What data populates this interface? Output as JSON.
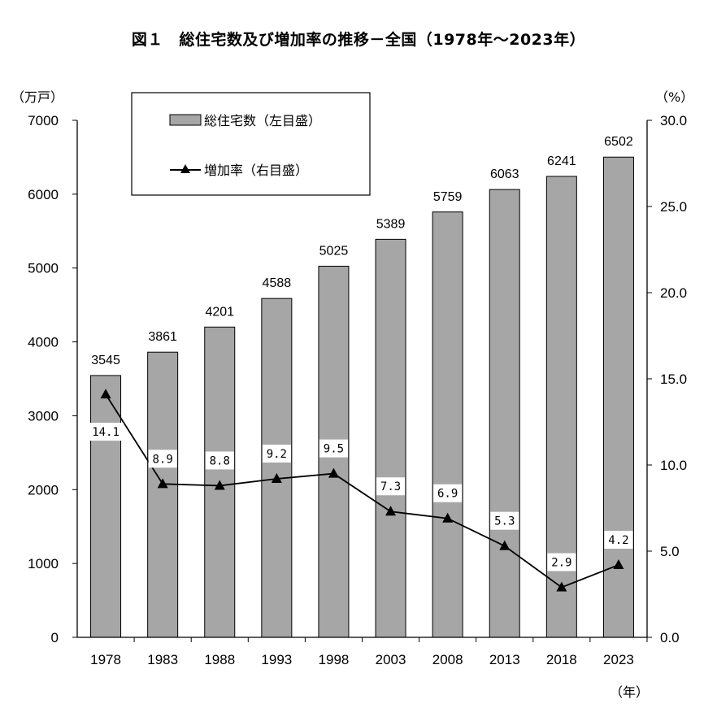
{
  "title": "図１　総住宅数及び増加率の推移－全国（1978年～2023年）",
  "left_unit": "（万戸）",
  "right_unit": "（%）",
  "x_unit": "（年）",
  "colors": {
    "bar_fill": "#a6a6a6",
    "bar_stroke": "#000000",
    "line": "#000000"
  },
  "chart_data": {
    "type": "bar",
    "categories": [
      "1978",
      "1983",
      "1988",
      "1993",
      "1998",
      "2003",
      "2008",
      "2013",
      "2018",
      "2023"
    ],
    "series": [
      {
        "name": "総住宅数（左目盛）",
        "type": "bar",
        "axis": "left",
        "values": [
          3545,
          3861,
          4201,
          4588,
          5025,
          5389,
          5759,
          6063,
          6241,
          6502
        ],
        "labels": [
          "3545",
          "3861",
          "4201",
          "4588",
          "5025",
          "5389",
          "5759",
          "6063",
          "6241",
          "6502"
        ]
      },
      {
        "name": "増加率（右目盛）",
        "type": "line",
        "axis": "right",
        "values": [
          14.1,
          8.9,
          8.8,
          9.2,
          9.5,
          7.3,
          6.9,
          5.3,
          2.9,
          4.2
        ],
        "labels": [
          "14.1",
          "8.9",
          "8.8",
          "9.2",
          "9.5",
          "7.3",
          "6.9",
          "5.3",
          "2.9",
          "4.2"
        ]
      }
    ],
    "y_left": {
      "min": 0,
      "max": 7000,
      "ticks": [
        "0",
        "1000",
        "2000",
        "3000",
        "4000",
        "5000",
        "6000",
        "7000"
      ]
    },
    "y_right": {
      "min": 0,
      "max": 30,
      "ticks": [
        "0.0",
        "5.0",
        "10.0",
        "15.0",
        "20.0",
        "25.0",
        "30.0"
      ]
    },
    "grid": false,
    "legend_position": "top-left"
  }
}
